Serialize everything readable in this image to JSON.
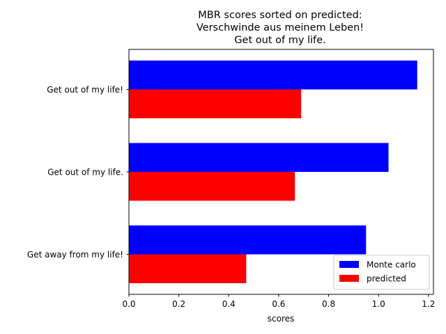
{
  "chart_data": {
    "type": "bar",
    "orientation": "horizontal",
    "title_lines": [
      "MBR scores sorted on predicted:",
      "Verschwinde aus meinem Leben!",
      "Get out of my life."
    ],
    "xlabel": "scores",
    "ylabel": "",
    "categories": [
      "Get out of my life!",
      "Get out of my life.",
      "Get away from my life!"
    ],
    "series": [
      {
        "name": "Monte carlo",
        "color": "#0000ff",
        "values": [
          1.155,
          1.04,
          0.95
        ]
      },
      {
        "name": "predicted",
        "color": "#ff0000",
        "values": [
          0.69,
          0.665,
          0.47
        ]
      }
    ],
    "xlim": [
      0,
      1.22
    ],
    "xticks": [
      "0.0",
      "0.2",
      "0.4",
      "0.6",
      "0.8",
      "1.0",
      "1.2"
    ],
    "grid": false,
    "legend_position": "lower-right"
  }
}
